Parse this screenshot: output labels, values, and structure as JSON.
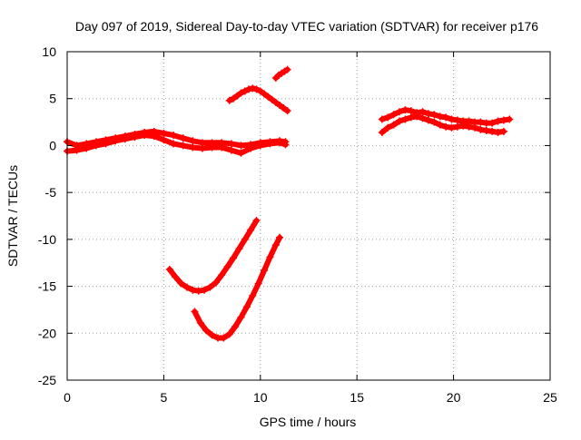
{
  "chart_data": {
    "type": "scatter",
    "title": "Day 097 of 2019, Sidereal Day-to-day VTEC variation (SDTVAR) for receiver p176",
    "xlabel": "GPS time / hours",
    "ylabel": "SDTVAR / TECUs",
    "xlim": [
      0,
      25
    ],
    "ylim": [
      -25,
      10
    ],
    "xticks": [
      0,
      5,
      10,
      15,
      20,
      25
    ],
    "yticks": [
      -25,
      -20,
      -15,
      -10,
      -5,
      0,
      5,
      10
    ],
    "xtick_labels": [
      "0",
      "5",
      "10",
      "15",
      "20",
      "25"
    ],
    "ytick_labels": [
      "-25",
      "-20",
      "-15",
      "-10",
      "-5",
      "0",
      "5",
      "10"
    ],
    "grid": true,
    "legend": null,
    "marker": "plus",
    "series_color": "#ff0000",
    "series": [
      {
        "name": "trace-near-zero-upper",
        "x": [
          0.0,
          0.5,
          1.0,
          1.5,
          2.0,
          2.5,
          3.0,
          3.5,
          4.0,
          4.5,
          5.0,
          5.5,
          6.0,
          6.5,
          7.0,
          7.5,
          8.0,
          8.5,
          9.0,
          9.5,
          10.0,
          10.5,
          11.0,
          11.3
        ],
        "y": [
          0.4,
          0.0,
          0.2,
          0.4,
          0.6,
          0.8,
          1.0,
          1.2,
          1.4,
          1.5,
          1.3,
          1.1,
          0.8,
          0.5,
          0.3,
          0.3,
          0.3,
          0.2,
          0.0,
          0.1,
          0.3,
          0.4,
          0.5,
          0.4
        ]
      },
      {
        "name": "trace-near-zero-lower",
        "x": [
          0.0,
          0.5,
          1.0,
          1.5,
          2.0,
          2.5,
          3.0,
          3.5,
          4.0,
          4.5,
          5.0,
          5.5,
          6.0,
          6.5,
          7.0,
          7.5,
          8.0,
          8.5,
          9.0,
          9.5,
          10.0,
          10.5,
          11.0,
          11.3
        ],
        "y": [
          -0.6,
          -0.5,
          -0.3,
          0.0,
          0.2,
          0.5,
          0.7,
          0.9,
          1.1,
          1.0,
          0.6,
          0.2,
          0.0,
          -0.2,
          -0.3,
          -0.2,
          -0.2,
          -0.5,
          -0.8,
          -0.3,
          0.0,
          0.2,
          0.3,
          0.1
        ]
      },
      {
        "name": "trace-arc-upper",
        "x": [
          8.4,
          8.6,
          8.8,
          9.0,
          9.2,
          9.4,
          9.6,
          9.8,
          10.0,
          10.2,
          10.4,
          10.6,
          10.8,
          11.0,
          11.2,
          11.4
        ],
        "y": [
          4.8,
          5.0,
          5.3,
          5.6,
          5.8,
          6.0,
          6.1,
          6.0,
          5.8,
          5.5,
          5.2,
          4.9,
          4.6,
          4.3,
          4.0,
          3.7
        ]
      },
      {
        "name": "trace-short-top",
        "x": [
          10.8,
          10.95,
          11.1,
          11.25,
          11.4
        ],
        "y": [
          7.2,
          7.5,
          7.7,
          7.9,
          8.1
        ]
      },
      {
        "name": "trace-curve-mid",
        "x": [
          5.3,
          5.6,
          5.9,
          6.2,
          6.5,
          6.8,
          7.1,
          7.4,
          7.7,
          8.0,
          8.3,
          8.6,
          8.9,
          9.2,
          9.5,
          9.8
        ],
        "y": [
          -13.2,
          -14.0,
          -14.7,
          -15.1,
          -15.4,
          -15.5,
          -15.4,
          -15.1,
          -14.6,
          -13.8,
          -12.9,
          -12.0,
          -11.0,
          -10.0,
          -9.0,
          -8.0
        ]
      },
      {
        "name": "trace-curve-low",
        "x": [
          6.6,
          6.9,
          7.2,
          7.5,
          7.8,
          8.1,
          8.4,
          8.7,
          9.0,
          9.3,
          9.6,
          9.9,
          10.2,
          10.5,
          10.8,
          11.0
        ],
        "y": [
          -17.7,
          -18.9,
          -19.7,
          -20.2,
          -20.5,
          -20.5,
          -20.1,
          -19.3,
          -18.3,
          -17.2,
          -16.0,
          -14.7,
          -13.3,
          -11.9,
          -10.6,
          -9.8
        ]
      },
      {
        "name": "trace-late-upper",
        "x": [
          16.3,
          16.6,
          16.9,
          17.2,
          17.5,
          17.8,
          18.1,
          18.4,
          18.7,
          19.0,
          19.3,
          19.6,
          19.9,
          20.2,
          20.5,
          20.8,
          21.1,
          21.4,
          21.7,
          22.0,
          22.3,
          22.6,
          22.9
        ],
        "y": [
          2.8,
          3.0,
          3.3,
          3.6,
          3.8,
          3.7,
          3.5,
          3.6,
          3.4,
          3.3,
          3.1,
          3.0,
          2.8,
          2.7,
          2.6,
          2.6,
          2.5,
          2.5,
          2.4,
          2.4,
          2.6,
          2.7,
          2.8
        ]
      },
      {
        "name": "trace-late-lower",
        "x": [
          16.3,
          16.6,
          16.9,
          17.2,
          17.5,
          17.8,
          18.1,
          18.4,
          18.7,
          19.0,
          19.3,
          19.6,
          19.9,
          20.2,
          20.5,
          20.8,
          21.1,
          21.4,
          21.7,
          22.0,
          22.3,
          22.6
        ],
        "y": [
          1.4,
          1.9,
          2.2,
          2.6,
          2.8,
          3.0,
          3.1,
          2.9,
          2.7,
          2.5,
          2.2,
          2.0,
          1.9,
          2.0,
          2.1,
          2.0,
          1.9,
          1.7,
          1.6,
          1.5,
          1.4,
          1.5
        ]
      }
    ]
  }
}
